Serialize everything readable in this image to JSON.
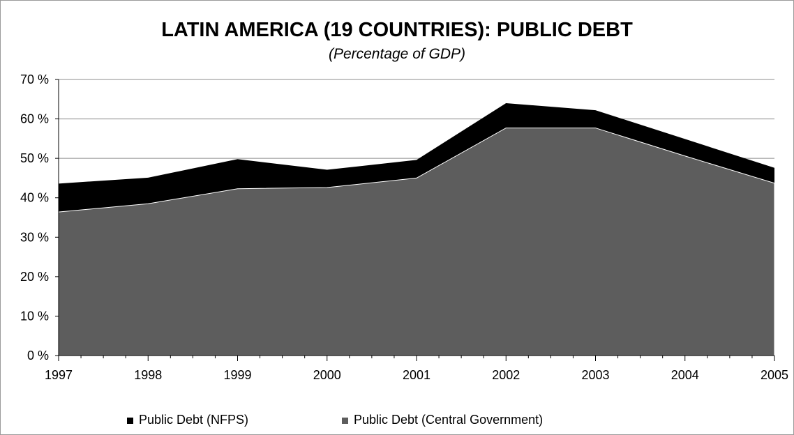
{
  "chart_data": {
    "type": "area",
    "title": "LATIN AMERICA (19 COUNTRIES): PUBLIC DEBT",
    "subtitle": "(Percentage of GDP)",
    "xlabel": "",
    "ylabel": "",
    "categories": [
      "1997",
      "1998",
      "1999",
      "2000",
      "2001",
      "2002",
      "2003",
      "2004",
      "2005"
    ],
    "ylim": [
      0,
      70
    ],
    "y_ticks": [
      "0 %",
      "10 %",
      "20 %",
      "30 %",
      "40 %",
      "50 %",
      "60 %",
      "70 %"
    ],
    "stacked": false,
    "grid": "horizontal",
    "legend_position": "bottom",
    "series": [
      {
        "name": "Public Debt (NFPS)",
        "color": "#000000",
        "values": [
          43.6,
          45.1,
          49.8,
          47.1,
          49.6,
          64.0,
          62.2,
          54.9,
          47.6
        ]
      },
      {
        "name": "Public Debt (Central Government)",
        "color": "#5d5d5d",
        "values": [
          36.4,
          38.5,
          42.3,
          42.6,
          45.0,
          57.7,
          57.7,
          50.6,
          43.7
        ]
      }
    ]
  }
}
